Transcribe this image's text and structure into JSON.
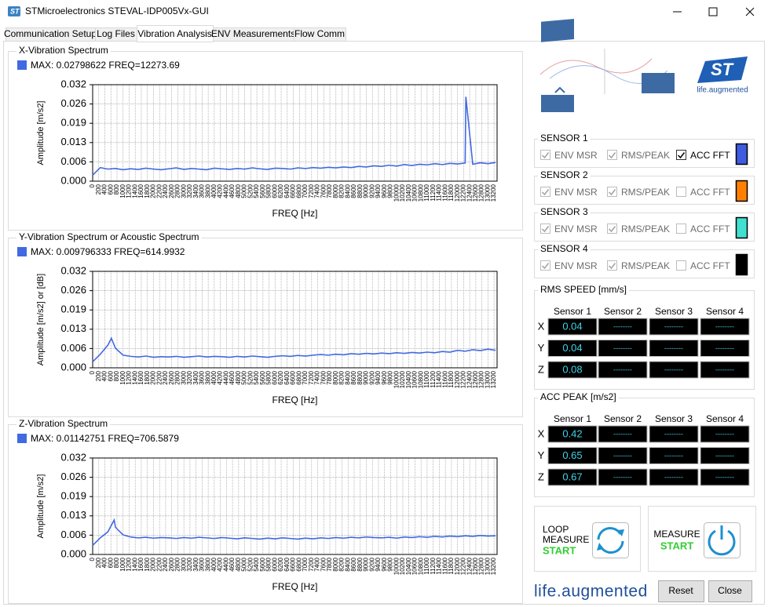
{
  "window": {
    "title": "STMicroelectronics STEVAL-IDP005Vx-GUI"
  },
  "tabs": [
    "Communication Setup",
    "Log Files",
    "Vibration Analysis",
    "ENV Measurements",
    "Flow Comm"
  ],
  "active_tab": 2,
  "chart_data": [
    {
      "type": "line",
      "title": "X-Vibration Spectrum",
      "xlabel": "FREQ [Hz]",
      "ylabel": "Amplitude [m/s2]",
      "grid": true,
      "xlim": [
        0,
        13300
      ],
      "xticks": [
        0,
        200,
        400,
        600,
        800,
        1000,
        1200,
        1400,
        1600,
        1800,
        2000,
        2200,
        2400,
        2600,
        2800,
        3000,
        3200,
        3400,
        3600,
        3800,
        4000,
        4200,
        4400,
        4600,
        4800,
        5000,
        5200,
        5400,
        5600,
        5800,
        6000,
        6200,
        6400,
        6600,
        6800,
        7000,
        7200,
        7400,
        7600,
        7800,
        8000,
        8200,
        8400,
        8600,
        8800,
        9000,
        9200,
        9400,
        9600,
        9800,
        10000,
        10200,
        10400,
        10600,
        10800,
        11000,
        11200,
        11400,
        11600,
        11800,
        12000,
        12200,
        12400,
        12600,
        12800,
        13000,
        13200
      ],
      "ylim": [
        0,
        0.032
      ],
      "yticks": [
        {
          "value": 0,
          "label": "0.000"
        },
        {
          "value": 0.0064,
          "label": "0.006"
        },
        {
          "value": 0.0128,
          "label": "0.013"
        },
        {
          "value": 0.0192,
          "label": "0.019"
        },
        {
          "value": 0.0256,
          "label": "0.026"
        },
        0.032
      ],
      "x": [
        0,
        250,
        500,
        750,
        1000,
        1250,
        1500,
        1750,
        2000,
        2250,
        2500,
        2750,
        3000,
        3250,
        3500,
        3750,
        4000,
        4250,
        4500,
        4750,
        5000,
        5250,
        5500,
        5750,
        6000,
        6250,
        6500,
        6750,
        7000,
        7250,
        7500,
        7750,
        8000,
        8250,
        8500,
        8750,
        9000,
        9250,
        9500,
        9750,
        10000,
        10250,
        10500,
        10750,
        11000,
        11250,
        11500,
        11750,
        12000,
        12250,
        12273.69,
        12500,
        12750,
        13000,
        13250
      ],
      "series": [
        {
          "name": "MAX: 0.02798622 FREQ=12273.69",
          "color": "#4169e1",
          "values": [
            0.002,
            0.0045,
            0.004,
            0.0042,
            0.0038,
            0.0041,
            0.0039,
            0.0043,
            0.004,
            0.0038,
            0.0041,
            0.0044,
            0.0039,
            0.0042,
            0.004,
            0.0038,
            0.0043,
            0.0041,
            0.0039,
            0.0042,
            0.004,
            0.0044,
            0.0041,
            0.0039,
            0.0043,
            0.0042,
            0.004,
            0.0044,
            0.0042,
            0.0045,
            0.0043,
            0.0046,
            0.0044,
            0.0047,
            0.0045,
            0.0049,
            0.0047,
            0.0051,
            0.0049,
            0.0053,
            0.005,
            0.0055,
            0.0052,
            0.0056,
            0.0054,
            0.0058,
            0.0055,
            0.0059,
            0.0057,
            0.006,
            0.02798622,
            0.0056,
            0.0061,
            0.0058,
            0.0062
          ]
        }
      ]
    },
    {
      "type": "line",
      "title": "Y-Vibration Spectrum or Acoustic Spectrum",
      "xlabel": "FREQ [Hz]",
      "ylabel": "Amplitude [m/s2] or [dB]",
      "grid": true,
      "xlim": [
        0,
        13300
      ],
      "xticks": [
        0,
        200,
        400,
        600,
        800,
        1000,
        1200,
        1400,
        1600,
        1800,
        2000,
        2200,
        2400,
        2600,
        2800,
        3000,
        3200,
        3400,
        3600,
        3800,
        4000,
        4200,
        4400,
        4600,
        4800,
        5000,
        5200,
        5400,
        5600,
        5800,
        6000,
        6200,
        6400,
        6600,
        6800,
        7000,
        7200,
        7400,
        7600,
        7800,
        8000,
        8200,
        8400,
        8600,
        8800,
        9000,
        9200,
        9400,
        9600,
        9800,
        10000,
        10200,
        10400,
        10600,
        10800,
        11000,
        11200,
        11400,
        11600,
        11800,
        12000,
        12200,
        12400,
        12600,
        12800,
        13000,
        13200
      ],
      "ylim": [
        0,
        0.032
      ],
      "yticks": [
        {
          "value": 0,
          "label": "0.000"
        },
        {
          "value": 0.0064,
          "label": "0.006"
        },
        {
          "value": 0.0128,
          "label": "0.013"
        },
        {
          "value": 0.0192,
          "label": "0.019"
        },
        {
          "value": 0.0256,
          "label": "0.026"
        },
        0.032
      ],
      "x": [
        0,
        250,
        500,
        614.9932,
        750,
        1000,
        1250,
        1500,
        1750,
        2000,
        2250,
        2500,
        2750,
        3000,
        3250,
        3500,
        3750,
        4000,
        4250,
        4500,
        4750,
        5000,
        5250,
        5500,
        5750,
        6000,
        6250,
        6500,
        6750,
        7000,
        7250,
        7500,
        7750,
        8000,
        8250,
        8500,
        8750,
        9000,
        9250,
        9500,
        9750,
        10000,
        10250,
        10500,
        10750,
        11000,
        11250,
        11500,
        11750,
        12000,
        12250,
        12500,
        12750,
        13000,
        13250
      ],
      "series": [
        {
          "name": "MAX: 0.009796333 FREQ=614.9932",
          "color": "#4169e1",
          "values": [
            0.002,
            0.0045,
            0.0075,
            0.009796333,
            0.0065,
            0.0042,
            0.0038,
            0.0036,
            0.0039,
            0.0035,
            0.0037,
            0.0036,
            0.0038,
            0.0035,
            0.0037,
            0.0039,
            0.0036,
            0.0038,
            0.0037,
            0.0035,
            0.0038,
            0.0036,
            0.0039,
            0.0037,
            0.0035,
            0.0038,
            0.004,
            0.0038,
            0.0041,
            0.0039,
            0.0042,
            0.0044,
            0.0042,
            0.0045,
            0.0043,
            0.0047,
            0.0045,
            0.0048,
            0.0046,
            0.0049,
            0.0047,
            0.005,
            0.0048,
            0.0051,
            0.0049,
            0.0052,
            0.005,
            0.0054,
            0.0052,
            0.0058,
            0.0055,
            0.006,
            0.0057,
            0.0062,
            0.0058
          ]
        }
      ]
    },
    {
      "type": "line",
      "title": "Z-Vibration Spectrum",
      "xlabel": "FREQ [Hz]",
      "ylabel": "Amplitude [m/s2]",
      "grid": true,
      "xlim": [
        0,
        13300
      ],
      "xticks": [
        0,
        200,
        400,
        600,
        800,
        1000,
        1200,
        1400,
        1600,
        1800,
        2000,
        2200,
        2400,
        2600,
        2800,
        3000,
        3200,
        3400,
        3600,
        3800,
        4000,
        4200,
        4400,
        4600,
        4800,
        5000,
        5200,
        5400,
        5600,
        5800,
        6000,
        6200,
        6400,
        6600,
        6800,
        7000,
        7200,
        7400,
        7600,
        7800,
        8000,
        8200,
        8400,
        8600,
        8800,
        9000,
        9200,
        9400,
        9600,
        9800,
        10000,
        10200,
        10400,
        10600,
        10800,
        11000,
        11200,
        11400,
        11600,
        11800,
        12000,
        12200,
        12400,
        12600,
        12800,
        13000,
        13200
      ],
      "ylim": [
        0,
        0.032
      ],
      "yticks": [
        {
          "value": 0,
          "label": "0.000"
        },
        {
          "value": 0.0064,
          "label": "0.006"
        },
        {
          "value": 0.0128,
          "label": "0.013"
        },
        {
          "value": 0.0192,
          "label": "0.019"
        },
        {
          "value": 0.0256,
          "label": "0.026"
        },
        0.032
      ],
      "x": [
        0,
        250,
        500,
        706.5879,
        750,
        1000,
        1250,
        1500,
        1750,
        2000,
        2250,
        2500,
        2750,
        3000,
        3250,
        3500,
        3750,
        4000,
        4250,
        4500,
        4750,
        5000,
        5250,
        5500,
        5750,
        6000,
        6250,
        6500,
        6750,
        7000,
        7250,
        7500,
        7750,
        8000,
        8250,
        8500,
        8750,
        9000,
        9250,
        9500,
        9750,
        10000,
        10250,
        10500,
        10750,
        11000,
        11250,
        11500,
        11750,
        12000,
        12250,
        12500,
        12750,
        13000,
        13250
      ],
      "series": [
        {
          "name": "MAX: 0.01142751 FREQ=706.5879",
          "color": "#4169e1",
          "values": [
            0.003,
            0.0055,
            0.0075,
            0.01142751,
            0.009,
            0.0065,
            0.0058,
            0.0055,
            0.0057,
            0.0054,
            0.0056,
            0.0055,
            0.0053,
            0.0056,
            0.0054,
            0.0057,
            0.0055,
            0.0053,
            0.0056,
            0.0054,
            0.0052,
            0.0055,
            0.0053,
            0.0051,
            0.0054,
            0.0052,
            0.0055,
            0.0053,
            0.0051,
            0.0054,
            0.0052,
            0.0055,
            0.0053,
            0.0056,
            0.0054,
            0.0057,
            0.0055,
            0.0058,
            0.0056,
            0.0055,
            0.0057,
            0.0054,
            0.0058,
            0.0056,
            0.0059,
            0.0057,
            0.006,
            0.0058,
            0.0061,
            0.0059,
            0.0062,
            0.006,
            0.0063,
            0.0061,
            0.0062
          ]
        }
      ]
    }
  ],
  "logo": {
    "tagline": "life.augmented"
  },
  "sensors": [
    {
      "label": "SENSOR 1",
      "color": "#3f5be0",
      "options": [
        {
          "label": "ENV MSR",
          "checked": true,
          "enabled": false
        },
        {
          "label": "RMS/PEAK",
          "checked": true,
          "enabled": false
        },
        {
          "label": "ACC FFT",
          "checked": true,
          "enabled": true
        }
      ]
    },
    {
      "label": "SENSOR 2",
      "color": "#ff8000",
      "options": [
        {
          "label": "ENV MSR",
          "checked": true,
          "enabled": false
        },
        {
          "label": "RMS/PEAK",
          "checked": true,
          "enabled": false
        },
        {
          "label": "ACC FFT",
          "checked": false,
          "enabled": false
        }
      ]
    },
    {
      "label": "SENSOR 3",
      "color": "#40e0d0",
      "options": [
        {
          "label": "ENV MSR",
          "checked": true,
          "enabled": false
        },
        {
          "label": "RMS/PEAK",
          "checked": true,
          "enabled": false
        },
        {
          "label": "ACC FFT",
          "checked": false,
          "enabled": false
        }
      ]
    },
    {
      "label": "SENSOR 4",
      "color": "#000000",
      "options": [
        {
          "label": "ENV MSR",
          "checked": true,
          "enabled": false
        },
        {
          "label": "RMS/PEAK",
          "checked": true,
          "enabled": false
        },
        {
          "label": "ACC FFT",
          "checked": false,
          "enabled": false
        }
      ]
    }
  ],
  "tables": [
    {
      "title": "RMS SPEED [mm/s]",
      "columns": [
        "Sensor 1",
        "Sensor 2",
        "Sensor 3",
        "Sensor 4"
      ],
      "rows": [
        {
          "axis": "X",
          "values": [
            0.04,
            "--------",
            "--------",
            "--------"
          ]
        },
        {
          "axis": "Y",
          "values": [
            0.04,
            "--------",
            "--------",
            "--------"
          ]
        },
        {
          "axis": "Z",
          "values": [
            0.08,
            "--------",
            "--------",
            "--------"
          ]
        }
      ]
    },
    {
      "title": "ACC PEAK [m/s2]",
      "columns": [
        "Sensor 1",
        "Sensor 2",
        "Sensor 3",
        "Sensor 4"
      ],
      "rows": [
        {
          "axis": "X",
          "values": [
            0.42,
            "--------",
            "--------",
            "--------"
          ]
        },
        {
          "axis": "Y",
          "values": [
            0.65,
            "--------",
            "--------",
            "--------"
          ]
        },
        {
          "axis": "Z",
          "values": [
            0.67,
            "--------",
            "--------",
            "--------"
          ]
        }
      ]
    }
  ],
  "loop": {
    "lines": [
      "LOOP",
      "MEASURE"
    ],
    "state": "START"
  },
  "measure": {
    "label": "MEASURE",
    "state": "START"
  },
  "footer": {
    "brand": "life.augmented",
    "buttons": [
      "Reset",
      "Close"
    ]
  }
}
